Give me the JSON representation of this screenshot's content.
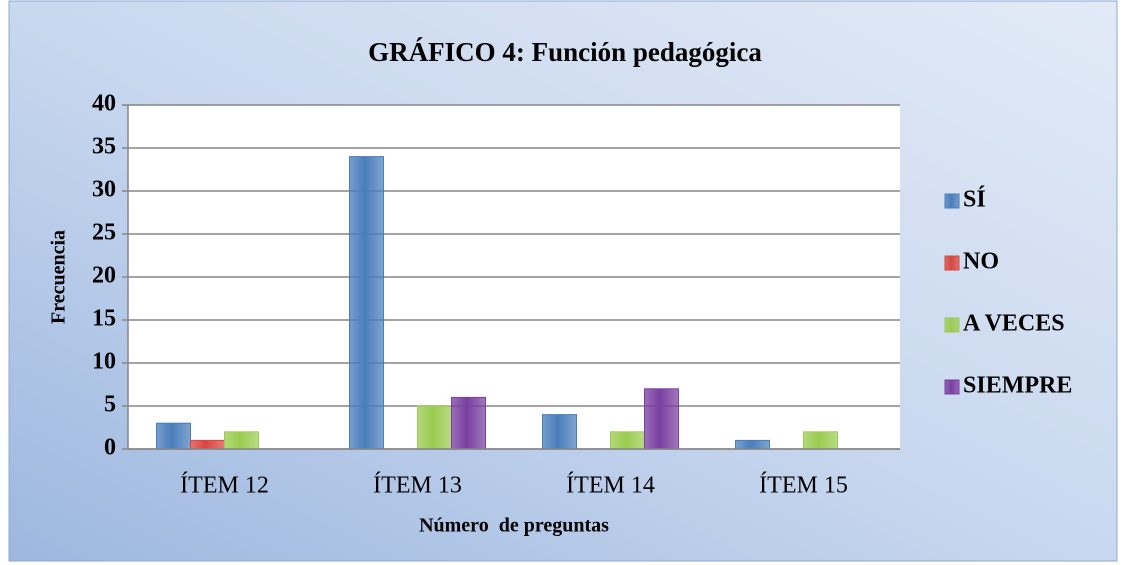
{
  "chart_data": {
    "type": "bar",
    "title": "GRÁFICO 4: Función pedagógica",
    "x_label": "Número  de preguntas",
    "y_label": "Frecuencia",
    "categories": [
      "ÍTEM 12",
      "ÍTEM 13",
      "ÍTEM 14",
      "ÍTEM 15"
    ],
    "series": [
      {
        "name": "SÍ",
        "color": "#4a7ebb",
        "values": [
          3,
          34,
          4,
          1
        ]
      },
      {
        "name": "NO",
        "color": "#d9463f",
        "values": [
          1,
          0,
          0,
          0
        ]
      },
      {
        "name": "A VECES",
        "color": "#9bcc50",
        "values": [
          2,
          5,
          2,
          2
        ]
      },
      {
        "name": "SIEMPRE",
        "color": "#7a3fa0",
        "values": [
          0,
          6,
          7,
          0
        ]
      }
    ],
    "ylim": [
      0,
      40
    ],
    "yticks": [
      0,
      5,
      10,
      15,
      20,
      25,
      30,
      35,
      40
    ],
    "grid": true,
    "legend": "right"
  }
}
